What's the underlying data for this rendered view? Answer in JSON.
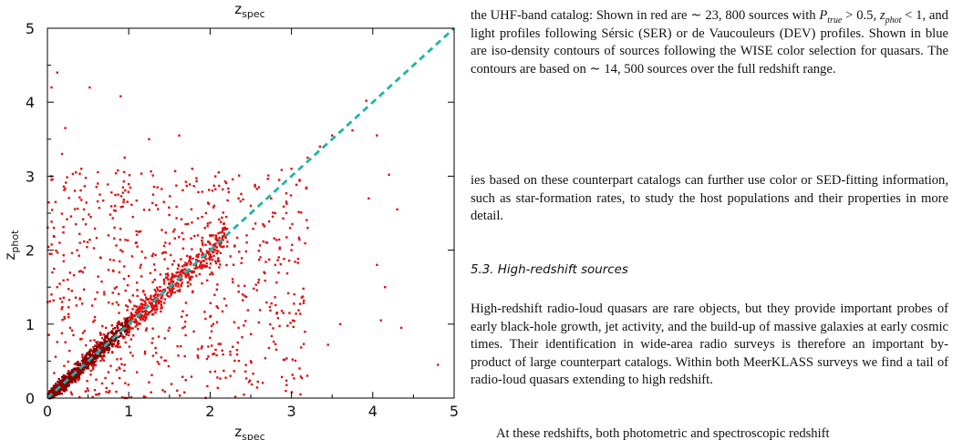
{
  "figure": {
    "top_axis_label": "z",
    "top_axis_label_sub": "spec",
    "xlabel": "z",
    "xlabel_sub": "spec",
    "ylabel": "z",
    "ylabel_sub": "phot",
    "colors": {
      "points": "#dd1111",
      "dense_core": "#8a0000",
      "one_to_one": "#20b2aa",
      "frame": "#000000"
    }
  },
  "chart_data": {
    "type": "scatter",
    "xlabel": "zspec",
    "ylabel": "zphot",
    "xlim": [
      0,
      5
    ],
    "ylim": [
      0,
      5
    ],
    "x_ticks": [
      "0",
      "1",
      "2",
      "3",
      "4",
      "5"
    ],
    "y_ticks": [
      "0",
      "1",
      "2",
      "3",
      "4",
      "5"
    ],
    "grid": false,
    "one_to_one_line": {
      "x": [
        0,
        5
      ],
      "y": [
        0,
        5
      ],
      "style": "dashed"
    },
    "series": [
      {
        "points": [
          [
            0.05,
            4.2
          ],
          [
            0.12,
            4.4
          ],
          [
            0.18,
            3.3
          ],
          [
            0.52,
            4.2
          ],
          [
            0.9,
            4.08
          ],
          [
            0.22,
            3.65
          ],
          [
            0.35,
            3.05
          ],
          [
            0.62,
            2.9
          ],
          [
            0.95,
            3.25
          ],
          [
            1.25,
            3.5
          ],
          [
            1.62,
            3.55
          ],
          [
            1.78,
            3.1
          ],
          [
            3.6,
            1.0
          ],
          [
            4.1,
            1.05
          ],
          [
            4.35,
            0.95
          ],
          [
            3.45,
            0.72
          ],
          [
            4.8,
            0.45
          ],
          [
            4.05,
            1.8
          ],
          [
            4.3,
            2.55
          ],
          [
            4.2,
            3.02
          ],
          [
            3.92,
            4.02
          ],
          [
            4.05,
            3.55
          ],
          [
            3.95,
            2.7
          ],
          [
            4.15,
            1.5
          ],
          [
            0.05,
            2.95
          ],
          [
            0.1,
            2.65
          ],
          [
            0.08,
            2.3
          ],
          [
            0.15,
            2.1
          ],
          [
            0.03,
            1.95
          ],
          [
            0.2,
            1.85
          ],
          [
            0.06,
            1.7
          ],
          [
            0.25,
            1.6
          ],
          [
            0.12,
            1.5
          ],
          [
            0.3,
            1.45
          ],
          [
            0.05,
            1.4
          ],
          [
            0.18,
            1.3
          ],
          [
            0.4,
            1.35
          ],
          [
            0.55,
            1.25
          ],
          [
            0.7,
            1.4
          ],
          [
            0.85,
            1.5
          ],
          [
            1.0,
            1.65
          ],
          [
            1.15,
            1.8
          ],
          [
            1.3,
            1.95
          ],
          [
            1.45,
            2.1
          ],
          [
            1.55,
            2.25
          ],
          [
            1.7,
            2.35
          ],
          [
            1.85,
            2.2
          ],
          [
            1.95,
            2.5
          ],
          [
            2.05,
            2.6
          ],
          [
            2.2,
            2.45
          ],
          [
            2.35,
            2.7
          ],
          [
            2.5,
            2.6
          ],
          [
            2.6,
            2.85
          ],
          [
            2.75,
            2.7
          ],
          [
            2.85,
            2.95
          ],
          [
            3.0,
            3.1
          ],
          [
            3.1,
            2.95
          ],
          [
            3.2,
            3.25
          ],
          [
            3.35,
            3.4
          ],
          [
            3.5,
            3.55
          ],
          [
            3.6,
            3.6
          ],
          [
            3.7,
            3.7
          ],
          [
            3.75,
            3.62
          ],
          [
            0.5,
            0.1
          ],
          [
            0.8,
            0.2
          ],
          [
            1.1,
            0.35
          ],
          [
            1.4,
            0.55
          ],
          [
            1.6,
            0.7
          ],
          [
            1.8,
            0.9
          ],
          [
            2.0,
            1.1
          ],
          [
            2.2,
            1.25
          ],
          [
            2.4,
            1.4
          ],
          [
            2.6,
            1.6
          ],
          [
            2.8,
            1.8
          ],
          [
            3.0,
            2.0
          ],
          [
            3.2,
            2.3
          ],
          [
            1.5,
            0.95
          ],
          [
            1.65,
            1.1
          ],
          [
            1.7,
            0.85
          ],
          [
            1.2,
            0.6
          ],
          [
            0.95,
            0.45
          ],
          [
            0.75,
            0.35
          ],
          [
            0.6,
            0.25
          ],
          [
            0.3,
            0.05
          ],
          [
            2.5,
            0.5
          ],
          [
            3.1,
            0.4
          ],
          [
            2.9,
            1.15
          ],
          [
            2.35,
            0.95
          ],
          [
            2.05,
            0.6
          ],
          [
            1.9,
            1.55
          ],
          [
            2.1,
            1.85
          ],
          [
            2.3,
            2.05
          ],
          [
            2.45,
            2.2
          ],
          [
            2.65,
            2.35
          ],
          [
            2.8,
            2.5
          ],
          [
            1.75,
            1.6
          ],
          [
            1.6,
            1.45
          ],
          [
            1.4,
            1.25
          ],
          [
            1.2,
            1.05
          ],
          [
            1.0,
            0.85
          ],
          [
            0.8,
            0.7
          ],
          [
            0.6,
            0.5
          ],
          [
            0.4,
            0.32
          ],
          [
            0.2,
            0.15
          ],
          [
            0.45,
            2.55
          ],
          [
            0.75,
            2.2
          ],
          [
            1.05,
            2.45
          ],
          [
            1.3,
            2.75
          ],
          [
            0.65,
            1.9
          ],
          [
            0.9,
            2.0
          ],
          [
            0.35,
            2.35
          ],
          [
            0.28,
            0.95
          ],
          [
            0.42,
            0.8
          ],
          [
            0.58,
            1.05
          ],
          [
            0.72,
            0.95
          ],
          [
            0.88,
            1.15
          ],
          [
            1.02,
            1.3
          ],
          [
            1.18,
            1.45
          ],
          [
            1.32,
            1.6
          ],
          [
            1.48,
            1.75
          ]
        ]
      }
    ]
  },
  "text": {
    "caption_a": "the UHF-band catalog: Shown in red are ∼ 23, 800 sources with ",
    "p_true": "P",
    "p_true_sub": "true",
    "caption_b": " > 0.5, ",
    "z_phot": "z",
    "z_phot_sub": "phot",
    "caption_c": " < 1, and light profiles following Sérsic (SER) or de Vaucouleurs (DEV) profiles. Shown in blue are iso-density contours of sources following the WISE color selection for quasars. The contours are based on ∼ 14, 500 sources over the full redshift range.",
    "paragraph_1": "ies based on these counterpart catalogs can further use color or SED-fitting information, such as star-formation rates, to study the host populations and their properties in more detail.",
    "section_heading": "5.3. High-redshift sources",
    "paragraph_2": "High-redshift radio-loud quasars are rare objects, but they provide important probes of early black-hole growth, jet activity, and the build-up of massive galaxies at early cosmic times. Their identification in wide-area radio surveys is therefore an important by-product of large counterpart catalogs. Within both MeerKLASS surveys we find a tail of radio-loud quasars extending to high redshift.",
    "paragraph_3_cut": "At these redshifts, both photometric and spectroscopic redshift"
  }
}
